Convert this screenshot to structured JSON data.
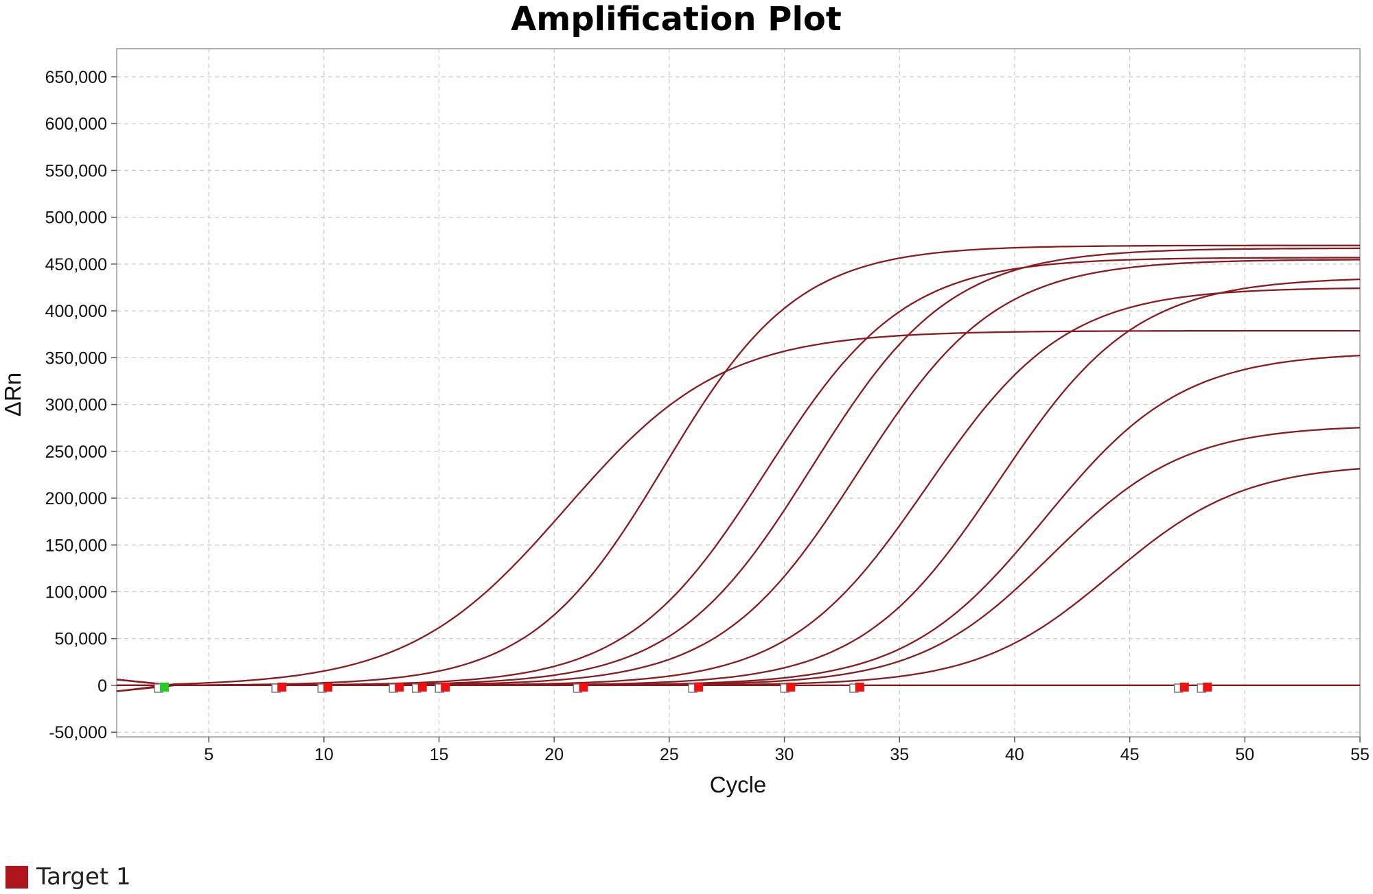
{
  "chart_data": {
    "type": "line",
    "title": "Amplification Plot",
    "xlabel": "Cycle",
    "ylabel": "ΔRn",
    "xlim": [
      1,
      55
    ],
    "ylim": [
      -55000,
      680000
    ],
    "x_ticks": [
      5,
      10,
      15,
      20,
      25,
      30,
      35,
      40,
      45,
      50,
      55
    ],
    "y_ticks": [
      -50000,
      0,
      50000,
      100000,
      150000,
      200000,
      250000,
      300000,
      350000,
      400000,
      450000,
      500000,
      550000,
      600000,
      650000
    ],
    "x_tick_labels": [
      "5",
      "10",
      "15",
      "20",
      "25",
      "30",
      "35",
      "40",
      "45",
      "50",
      "55"
    ],
    "y_tick_labels": [
      "-50,000",
      "0",
      "50,000",
      "100,000",
      "150,000",
      "200,000",
      "250,000",
      "300,000",
      "350,000",
      "400,000",
      "450,000",
      "500,000",
      "550,000",
      "600,000",
      "650,000"
    ],
    "grid": true,
    "legend": "bottom-left",
    "color": "#8b1a1f",
    "series": [
      {
        "plateau": 380000,
        "midpoint": 20.5,
        "slope": 3.4
      },
      {
        "plateau": 470000,
        "midpoint": 24.8,
        "slope": 2.9
      },
      {
        "plateau": 457000,
        "midpoint": 29.2,
        "slope": 3.0
      },
      {
        "plateau": 467000,
        "midpoint": 31.2,
        "slope": 3.0
      },
      {
        "plateau": 455000,
        "midpoint": 33.2,
        "slope": 3.0
      },
      {
        "plateau": 425000,
        "midpoint": 36.2,
        "slope": 3.0
      },
      {
        "plateau": 436000,
        "midpoint": 39.3,
        "slope": 3.0
      },
      {
        "plateau": 356000,
        "midpoint": 41.3,
        "slope": 3.0
      },
      {
        "plateau": 278000,
        "midpoint": 41.6,
        "slope": 2.9
      },
      {
        "plateau": 237000,
        "midpoint": 44.2,
        "slope": 2.9
      },
      {
        "plateau": 0,
        "midpoint": 0,
        "slope": 1
      },
      {
        "plateau": 0,
        "midpoint": 0,
        "slope": 1
      }
    ],
    "markers": [
      {
        "x": 3.0,
        "color": "#22cc22"
      },
      {
        "x": 8.1,
        "color": "#ee1111"
      },
      {
        "x": 10.1,
        "color": "#ee1111"
      },
      {
        "x": 13.2,
        "color": "#ee1111"
      },
      {
        "x": 14.2,
        "color": "#ee1111"
      },
      {
        "x": 15.2,
        "color": "#ee1111"
      },
      {
        "x": 21.2,
        "color": "#ee1111"
      },
      {
        "x": 26.2,
        "color": "#ee1111"
      },
      {
        "x": 30.2,
        "color": "#ee1111"
      },
      {
        "x": 33.2,
        "color": "#ee1111"
      },
      {
        "x": 47.3,
        "color": "#ee1111"
      },
      {
        "x": 48.3,
        "color": "#ee1111"
      }
    ]
  },
  "legend": {
    "label": "Target 1",
    "color": "#b0151e"
  }
}
